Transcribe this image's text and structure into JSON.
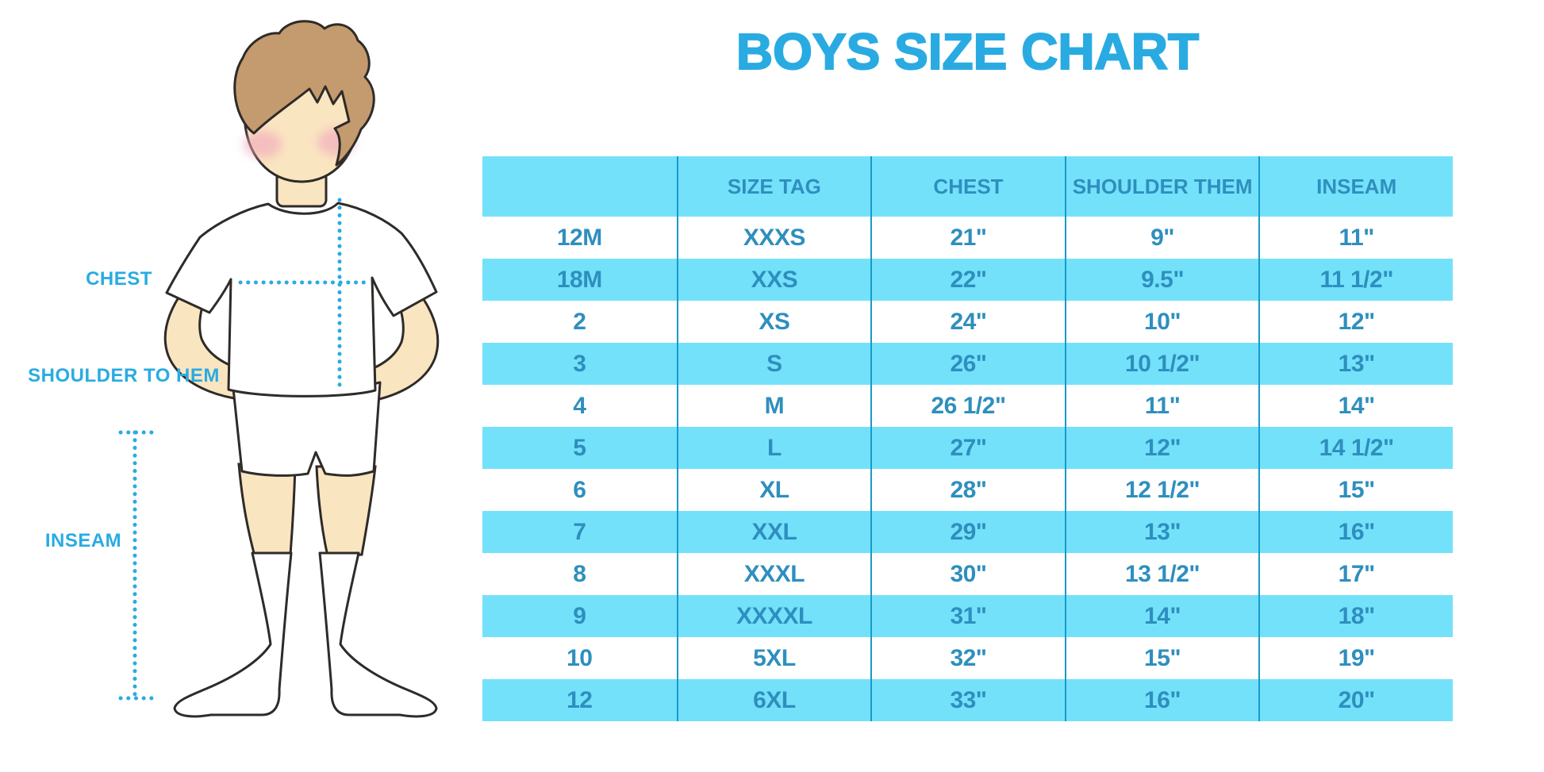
{
  "title": "BOYS SIZE CHART",
  "colors": {
    "accent": "#29ABE2",
    "rowBlue": "#74E1FB",
    "tableText": "#2E8FBE",
    "divider": "#189AC8",
    "skin": "#FAE5C1",
    "hair": "#C49B6E",
    "blush": "#F0A5BB",
    "outline": "#2E2B28"
  },
  "diagram": {
    "labels": {
      "chest": "CHEST",
      "shoulder_to_hem": "SHOULDER TO HEM",
      "inseam": "INSEAM"
    }
  },
  "chart_data": {
    "type": "table",
    "title": "BOYS SIZE CHART",
    "columns": [
      "",
      "SIZE TAG",
      "CHEST",
      "SHOULDER THEM",
      "INSEAM"
    ],
    "rows": [
      [
        "12M",
        "XXXS",
        "21\"",
        "9\"",
        "11\""
      ],
      [
        "18M",
        "XXS",
        "22\"",
        "9.5\"",
        "11 1/2\""
      ],
      [
        "2",
        "XS",
        "24\"",
        "10\"",
        "12\""
      ],
      [
        "3",
        "S",
        "26\"",
        "10 1/2\"",
        "13\""
      ],
      [
        "4",
        "M",
        "26 1/2\"",
        "11\"",
        "14\""
      ],
      [
        "5",
        "L",
        "27\"",
        "12\"",
        "14 1/2\""
      ],
      [
        "6",
        "XL",
        "28\"",
        "12 1/2\"",
        "15\""
      ],
      [
        "7",
        "XXL",
        "29\"",
        "13\"",
        "16\""
      ],
      [
        "8",
        "XXXL",
        "30\"",
        "13 1/2\"",
        "17\""
      ],
      [
        "9",
        "XXXXL",
        "31\"",
        "14\"",
        "18\""
      ],
      [
        "10",
        "5XL",
        "32\"",
        "15\"",
        "19\""
      ],
      [
        "12",
        "6XL",
        "33\"",
        "16\"",
        "20\""
      ]
    ]
  }
}
